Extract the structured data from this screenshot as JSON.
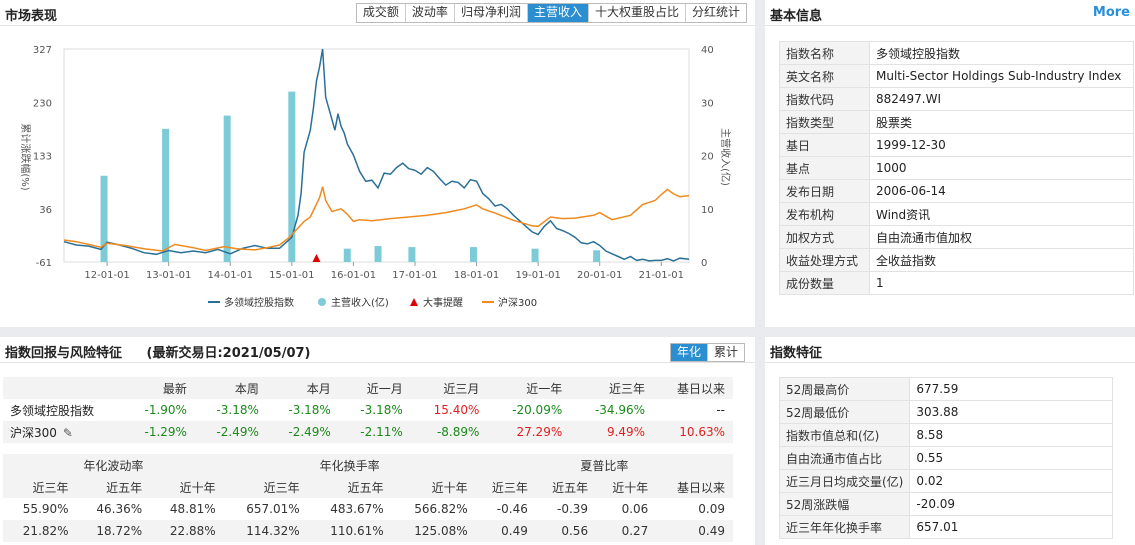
{
  "market": {
    "title": "市场表现",
    "tabs": [
      {
        "label": "成交额",
        "active": false
      },
      {
        "label": "波动率",
        "active": false
      },
      {
        "label": "归母净利润",
        "active": false
      },
      {
        "label": "主营收入",
        "active": true
      },
      {
        "label": "十大权重股占比",
        "active": false
      },
      {
        "label": "分红统计",
        "active": false
      }
    ]
  },
  "chart_data": {
    "type": "line",
    "ylabel_left": "累计涨跌幅(%)",
    "ylabel_right": "主营收入(亿)",
    "left_ticks": [
      327,
      230,
      133,
      36,
      -61
    ],
    "right_ticks": [
      40,
      30,
      20,
      10,
      0
    ],
    "ylim_left": [
      -61,
      327
    ],
    "ylim_right": [
      0,
      40
    ],
    "x_ticks": [
      "12-01-01",
      "13-01-01",
      "14-01-01",
      "15-01-01",
      "16-01-01",
      "17-01-01",
      "18-01-01",
      "19-01-01",
      "20-01-01",
      "21-01-01"
    ],
    "xlim": [
      2011.3,
      2021.45
    ],
    "legend": [
      "多领域控股指数",
      "主营收入(亿)",
      "大事提醒",
      "沪深300"
    ],
    "legend_position": "bottom",
    "series": [
      {
        "name": "多领域控股指数",
        "color": "#2a6f97",
        "points": [
          [
            2011.3,
            -24
          ],
          [
            2011.5,
            -30
          ],
          [
            2011.7,
            -32
          ],
          [
            2011.9,
            -38
          ],
          [
            2012.0,
            -25
          ],
          [
            2012.2,
            -30
          ],
          [
            2012.4,
            -36
          ],
          [
            2012.6,
            -44
          ],
          [
            2012.8,
            -47
          ],
          [
            2013.0,
            -40
          ],
          [
            2013.2,
            -44
          ],
          [
            2013.4,
            -41
          ],
          [
            2013.6,
            -44
          ],
          [
            2013.8,
            -38
          ],
          [
            2014.0,
            -46
          ],
          [
            2014.2,
            -36
          ],
          [
            2014.4,
            -31
          ],
          [
            2014.6,
            -36
          ],
          [
            2014.8,
            -36
          ],
          [
            2014.9,
            -26
          ],
          [
            2015.0,
            -16
          ],
          [
            2015.1,
            24
          ],
          [
            2015.15,
            64
          ],
          [
            2015.2,
            139
          ],
          [
            2015.3,
            179
          ],
          [
            2015.35,
            219
          ],
          [
            2015.4,
            269
          ],
          [
            2015.45,
            294
          ],
          [
            2015.5,
            327
          ],
          [
            2015.55,
            239
          ],
          [
            2015.6,
            219
          ],
          [
            2015.65,
            199
          ],
          [
            2015.7,
            179
          ],
          [
            2015.75,
            209
          ],
          [
            2015.8,
            186
          ],
          [
            2015.85,
            174
          ],
          [
            2015.9,
            154
          ],
          [
            2016.0,
            134
          ],
          [
            2016.1,
            104
          ],
          [
            2016.2,
            86
          ],
          [
            2016.3,
            88
          ],
          [
            2016.4,
            74
          ],
          [
            2016.5,
            101
          ],
          [
            2016.6,
            99
          ],
          [
            2016.7,
            111
          ],
          [
            2016.8,
            119
          ],
          [
            2016.9,
            109
          ],
          [
            2017.0,
            106
          ],
          [
            2017.1,
            99
          ],
          [
            2017.2,
            111
          ],
          [
            2017.3,
            104
          ],
          [
            2017.4,
            91
          ],
          [
            2017.5,
            79
          ],
          [
            2017.6,
            86
          ],
          [
            2017.7,
            84
          ],
          [
            2017.8,
            74
          ],
          [
            2017.9,
            89
          ],
          [
            2018.0,
            86
          ],
          [
            2018.1,
            64
          ],
          [
            2018.2,
            54
          ],
          [
            2018.3,
            41
          ],
          [
            2018.4,
            44
          ],
          [
            2018.5,
            36
          ],
          [
            2018.6,
            24
          ],
          [
            2018.7,
            14
          ],
          [
            2018.8,
            4
          ],
          [
            2018.9,
            -6
          ],
          [
            2019.0,
            -11
          ],
          [
            2019.1,
            4
          ],
          [
            2019.2,
            14
          ],
          [
            2019.3,
            0
          ],
          [
            2019.4,
            -4
          ],
          [
            2019.5,
            -9
          ],
          [
            2019.6,
            -16
          ],
          [
            2019.7,
            -26
          ],
          [
            2019.8,
            -28
          ],
          [
            2019.9,
            -24
          ],
          [
            2020.0,
            -31
          ],
          [
            2020.1,
            -41
          ],
          [
            2020.2,
            -46
          ],
          [
            2020.3,
            -51
          ],
          [
            2020.4,
            -56
          ],
          [
            2020.5,
            -51
          ],
          [
            2020.6,
            -58
          ],
          [
            2020.7,
            -56
          ],
          [
            2020.8,
            -59
          ],
          [
            2020.9,
            -58
          ],
          [
            2021.0,
            -58
          ],
          [
            2021.1,
            -55
          ],
          [
            2021.2,
            -59
          ],
          [
            2021.3,
            -54
          ],
          [
            2021.45,
            -56
          ]
        ]
      },
      {
        "name": "沪深300",
        "color": "#f08a1e",
        "points": [
          [
            2011.3,
            -21
          ],
          [
            2011.5,
            -24
          ],
          [
            2011.7,
            -29
          ],
          [
            2011.9,
            -34
          ],
          [
            2012.0,
            -27
          ],
          [
            2012.3,
            -31
          ],
          [
            2012.6,
            -37
          ],
          [
            2012.9,
            -41
          ],
          [
            2013.1,
            -29
          ],
          [
            2013.4,
            -35
          ],
          [
            2013.6,
            -40
          ],
          [
            2013.9,
            -33
          ],
          [
            2014.1,
            -37
          ],
          [
            2014.4,
            -39
          ],
          [
            2014.6,
            -35
          ],
          [
            2014.8,
            -30
          ],
          [
            2014.95,
            -17
          ],
          [
            2015.1,
            1
          ],
          [
            2015.2,
            13
          ],
          [
            2015.3,
            21
          ],
          [
            2015.45,
            56
          ],
          [
            2015.5,
            76
          ],
          [
            2015.55,
            51
          ],
          [
            2015.65,
            31
          ],
          [
            2015.8,
            36
          ],
          [
            2015.9,
            26
          ],
          [
            2016.0,
            13
          ],
          [
            2016.1,
            16
          ],
          [
            2016.3,
            14
          ],
          [
            2016.6,
            18
          ],
          [
            2016.9,
            21
          ],
          [
            2017.2,
            24
          ],
          [
            2017.5,
            29
          ],
          [
            2017.8,
            36
          ],
          [
            2018.0,
            43
          ],
          [
            2018.1,
            36
          ],
          [
            2018.3,
            28
          ],
          [
            2018.6,
            15
          ],
          [
            2018.9,
            5
          ],
          [
            2019.0,
            4
          ],
          [
            2019.2,
            21
          ],
          [
            2019.4,
            18
          ],
          [
            2019.6,
            19
          ],
          [
            2019.9,
            24
          ],
          [
            2020.0,
            29
          ],
          [
            2020.2,
            16
          ],
          [
            2020.5,
            24
          ],
          [
            2020.7,
            44
          ],
          [
            2020.9,
            51
          ],
          [
            2021.0,
            62
          ],
          [
            2021.1,
            71
          ],
          [
            2021.2,
            63
          ],
          [
            2021.3,
            58
          ],
          [
            2021.45,
            60
          ]
        ]
      }
    ],
    "revenue_bars": {
      "name": "主营收入(亿)",
      "color": "#7ecbd8",
      "points": [
        [
          2011.95,
          16.2
        ],
        [
          2012.95,
          25
        ],
        [
          2013.95,
          27.5
        ],
        [
          2015.0,
          32
        ],
        [
          2015.9,
          2.5
        ],
        [
          2016.4,
          3
        ],
        [
          2016.95,
          2.8
        ],
        [
          2017.95,
          2.8
        ],
        [
          2018.95,
          2.5
        ],
        [
          2019.95,
          2.2
        ]
      ]
    },
    "events": {
      "name": "大事提醒",
      "color": "#e00000",
      "points": [
        2015.4
      ]
    }
  },
  "basic_info": {
    "title": "基本信息",
    "more": "More",
    "rows": [
      {
        "key": "指数名称",
        "value": "多领域控股指数"
      },
      {
        "key": "英文名称",
        "value": "Multi-Sector Holdings Sub-Industry Index"
      },
      {
        "key": "指数代码",
        "value": "882497.WI"
      },
      {
        "key": "指数类型",
        "value": "股票类"
      },
      {
        "key": "基日",
        "value": "1999-12-30"
      },
      {
        "key": "基点",
        "value": "1000"
      },
      {
        "key": "发布日期",
        "value": "2006-06-14"
      },
      {
        "key": "发布机构",
        "value": "Wind资讯"
      },
      {
        "key": "加权方式",
        "value": "自由流通市值加权"
      },
      {
        "key": "收益处理方式",
        "value": "全收益指数"
      },
      {
        "key": "成份数量",
        "value": "1"
      }
    ]
  },
  "returns": {
    "title": "指数回报与风险特征",
    "date_label": "(最新交易日:2021/05/07)",
    "toggle": [
      {
        "label": "年化",
        "active": true
      },
      {
        "label": "累计",
        "active": false
      }
    ],
    "headers": [
      "",
      "最新",
      "本周",
      "本月",
      "近一月",
      "近三月",
      "近一年",
      "近三年",
      "基日以来"
    ],
    "rows": [
      {
        "name": "多领域控股指数",
        "values": [
          "-1.90%",
          "-3.18%",
          "-3.18%",
          "-3.18%",
          "15.40%",
          "-20.09%",
          "-34.96%",
          "--"
        ],
        "signs": [
          "down",
          "down",
          "down",
          "down",
          "up",
          "down",
          "down",
          "neutral"
        ]
      },
      {
        "name": "沪深300",
        "values": [
          "-1.29%",
          "-2.49%",
          "-2.49%",
          "-2.11%",
          "-8.89%",
          "27.29%",
          "9.49%",
          "10.63%"
        ],
        "signs": [
          "down",
          "down",
          "down",
          "down",
          "down",
          "up",
          "up",
          "up"
        ]
      }
    ],
    "stats_groups": [
      "年化波动率",
      "年化换手率",
      "夏普比率"
    ],
    "stats_headers": [
      "近三年",
      "近五年",
      "近十年",
      "近三年",
      "近五年",
      "近十年",
      "近三年",
      "近五年",
      "近十年",
      "基日以来"
    ],
    "stats_rows": [
      [
        "55.90%",
        "46.36%",
        "48.81%",
        "657.01%",
        "483.67%",
        "566.82%",
        "-0.46",
        "-0.39",
        "0.06",
        "0.09"
      ],
      [
        "21.82%",
        "18.72%",
        "22.88%",
        "114.32%",
        "110.61%",
        "125.08%",
        "0.49",
        "0.56",
        "0.27",
        "0.49"
      ]
    ]
  },
  "features": {
    "title": "指数特征",
    "rows": [
      {
        "key": "52周最高价",
        "value": "677.59"
      },
      {
        "key": "52周最低价",
        "value": "303.88"
      },
      {
        "key": "指数市值总和(亿)",
        "value": "8.58"
      },
      {
        "key": "自由流通市值占比",
        "value": "0.55"
      },
      {
        "key": "近三月日均成交量(亿)",
        "value": "0.02"
      },
      {
        "key": "52周涨跌幅",
        "value": "-20.09"
      },
      {
        "key": "近三年年化换手率",
        "value": "657.01"
      }
    ]
  }
}
